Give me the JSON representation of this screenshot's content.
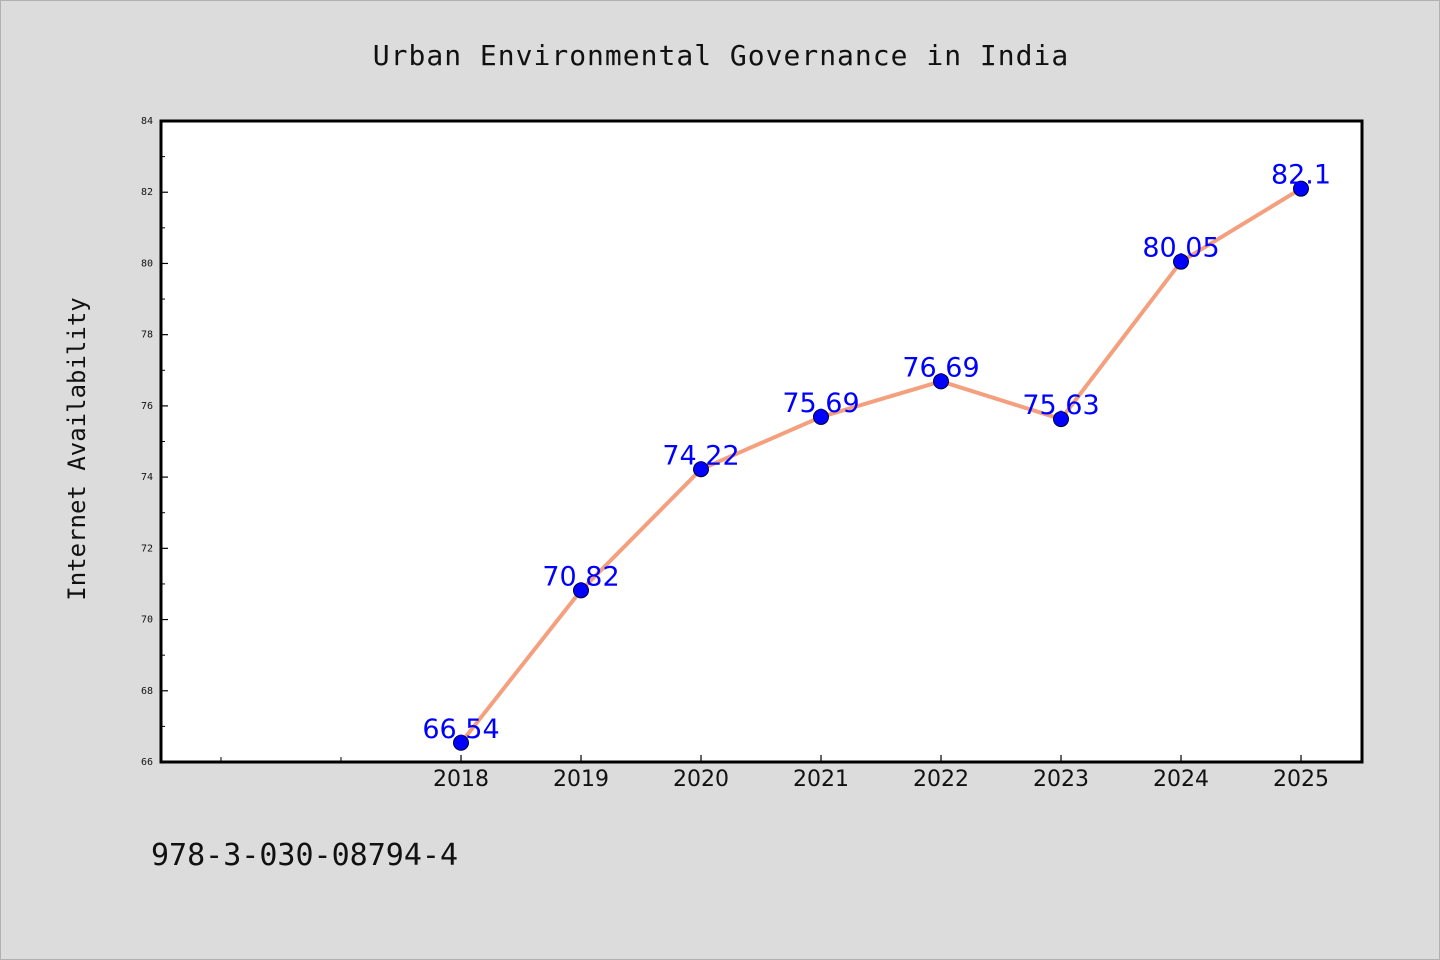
{
  "chart_data": {
    "type": "line",
    "title": "Urban Environmental Governance in India",
    "xlabel": "",
    "ylabel": "Internet Availability",
    "categories": [
      "2018",
      "2019",
      "2020",
      "2021",
      "2022",
      "2023",
      "2024",
      "2025"
    ],
    "series": [
      {
        "values": [
          66.54,
          70.82,
          74.22,
          75.69,
          76.69,
          75.63,
          80.05,
          82.1
        ],
        "data_labels": [
          "66.54",
          "70.82",
          "74.22",
          "75.69",
          "76.69",
          "75.63",
          "80.05",
          "82.1"
        ]
      }
    ],
    "ylim": [
      66,
      84
    ],
    "yticks": [
      66,
      68,
      70,
      72,
      74,
      76,
      78,
      80,
      82,
      84
    ],
    "ytick_labels": [
      "66",
      "68",
      "70",
      "72",
      "74",
      "76",
      "78",
      "80",
      "82",
      "84"
    ],
    "grid": false,
    "legend": "none",
    "colors": {
      "line": "#f4a07e",
      "marker": "#0000ff",
      "data_label": "#0000ff",
      "plot_background": "#ffffff",
      "page_background": "#dcdcdc"
    }
  },
  "footer": {
    "isbn": "978-3-030-08794-4"
  }
}
